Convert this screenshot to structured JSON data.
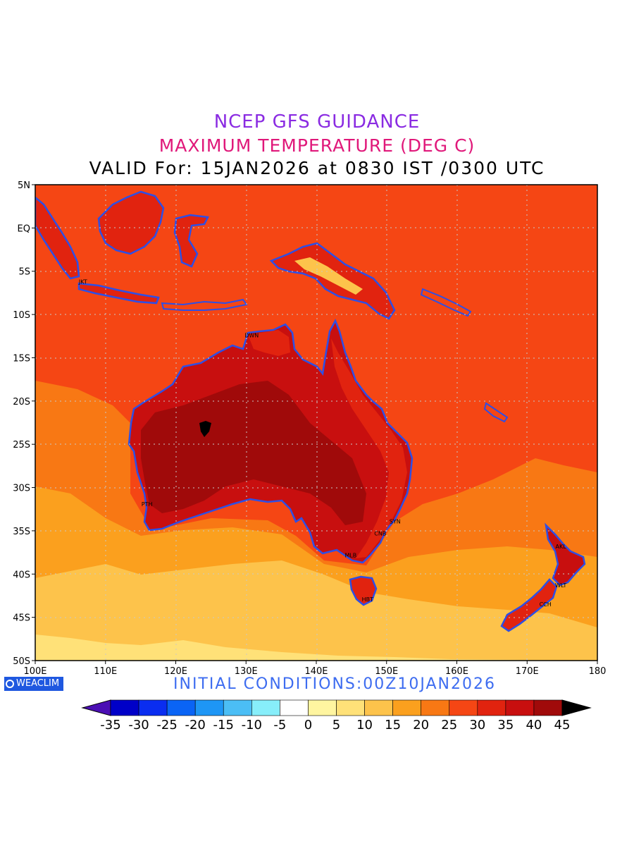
{
  "titles": {
    "line1": "NCEP GFS GUIDANCE",
    "line2": "MAXIMUM TEMPERATURE (DEG C)",
    "line3": "VALID For: 15JAN2026 at 0830 IST /0300 UTC"
  },
  "axes": {
    "lat_labels": [
      "5N",
      "EQ",
      "5S",
      "10S",
      "15S",
      "20S",
      "25S",
      "30S",
      "35S",
      "40S",
      "45S",
      "50S"
    ],
    "lon_labels": [
      "100E",
      "110E",
      "120E",
      "130E",
      "140E",
      "150E",
      "160E",
      "170E",
      "180"
    ]
  },
  "cities": [
    {
      "code": "JKT",
      "lon": 106.8,
      "lat": -6.2
    },
    {
      "code": "DWN",
      "lon": 130.8,
      "lat": -12.4
    },
    {
      "code": "PTH",
      "lon": 115.9,
      "lat": -31.9
    },
    {
      "code": "SYN",
      "lon": 151.2,
      "lat": -33.9
    },
    {
      "code": "CNB",
      "lon": 149.1,
      "lat": -35.3
    },
    {
      "code": "MLB",
      "lon": 144.9,
      "lat": -37.8
    },
    {
      "code": "HBT",
      "lon": 147.3,
      "lat": -42.9
    },
    {
      "code": "AKL",
      "lon": 174.8,
      "lat": -36.8
    },
    {
      "code": "WLT",
      "lon": 174.8,
      "lat": -41.3
    },
    {
      "code": "CCH",
      "lon": 172.6,
      "lat": -43.5
    }
  ],
  "footer": {
    "logo": "WEACLIM",
    "initial_conditions": "INITIAL  CONDITIONS:00Z10JAN2026"
  },
  "colorbar": {
    "labels": [
      "-35",
      "-30",
      "-25",
      "-20",
      "-15",
      "-10",
      "-5",
      "0",
      "5",
      "10",
      "15",
      "20",
      "25",
      "30",
      "35",
      "40",
      "45"
    ],
    "colors": [
      "#4b0fb4",
      "#0000c8",
      "#0a2df0",
      "#0a64f5",
      "#1e96f5",
      "#4bbef5",
      "#87eefa",
      "#ffffff",
      "#fff5a0",
      "#ffe178",
      "#fdc34b",
      "#fba01e",
      "#f87814",
      "#f54614",
      "#e1230f",
      "#c80f0f",
      "#a00a0a",
      "#000000"
    ]
  },
  "map_colors": {
    "coast": "#2d4fe6",
    "ocean_north": "#f54614",
    "ocean_lat35": "#f87814",
    "ocean_lat40": "#fba01e",
    "ocean_lat45": "#fdc34b",
    "ocean_lat48": "#ffe178",
    "land_hot": "#e1230f",
    "land_hotter": "#c80f0f",
    "land_hottest": "#a00a0a"
  }
}
